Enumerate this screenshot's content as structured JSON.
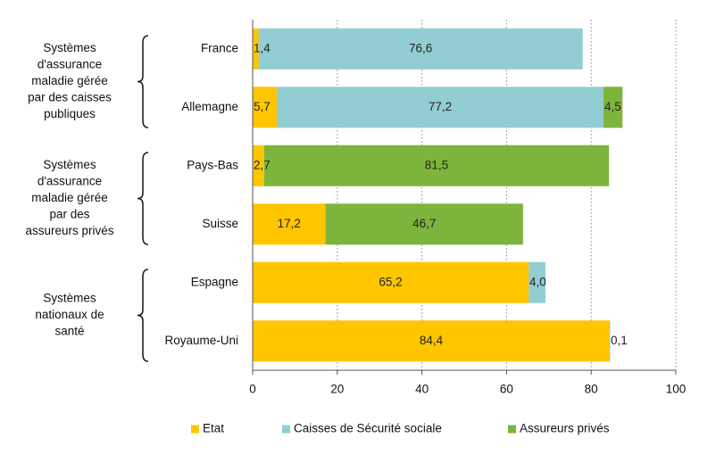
{
  "chart_data": {
    "type": "bar",
    "orientation": "horizontal",
    "stacked": true,
    "categories": [
      "France",
      "Allemagne",
      "Pays-Bas",
      "Suisse",
      "Espagne",
      "Royaume-Uni"
    ],
    "series": [
      {
        "name": "Etat",
        "color": "#FFC600",
        "values": [
          1.4,
          5.7,
          2.7,
          17.2,
          65.2,
          84.4
        ],
        "labels": [
          "1,4",
          "5,7",
          "2,7",
          "17,2",
          "65,2",
          "84,4"
        ]
      },
      {
        "name": "Caisses de Sécurité sociale",
        "color": "#92CDD3",
        "values": [
          76.6,
          77.2,
          0,
          0,
          4.0,
          0.1
        ],
        "labels": [
          "76,6",
          "77,2",
          "",
          "",
          "4,0",
          "0,1"
        ]
      },
      {
        "name": "Assureurs privés",
        "color": "#7DB53C",
        "values": [
          0,
          4.5,
          81.5,
          46.7,
          0,
          0
        ],
        "labels": [
          "",
          "4,5",
          "81,5",
          "46,7",
          "",
          ""
        ]
      }
    ],
    "groups": [
      {
        "label_lines": [
          "Systèmes",
          "d'assurance",
          "maladie gérée",
          "par des caisses",
          "publiques"
        ],
        "categories": [
          "France",
          "Allemagne"
        ]
      },
      {
        "label_lines": [
          "Systèmes",
          "d'assurance",
          "maladie gérée",
          "par des",
          "assureurs privés"
        ],
        "categories": [
          "Pays-Bas",
          "Suisse"
        ]
      },
      {
        "label_lines": [
          "Systèmes",
          "nationaux de",
          "santé"
        ],
        "categories": [
          "Espagne",
          "Royaume-Uni"
        ]
      }
    ],
    "xlim": [
      0,
      100
    ],
    "xticks": [
      0,
      20,
      40,
      60,
      80,
      100
    ],
    "grid": "vertical dotted",
    "legend_position": "bottom"
  }
}
